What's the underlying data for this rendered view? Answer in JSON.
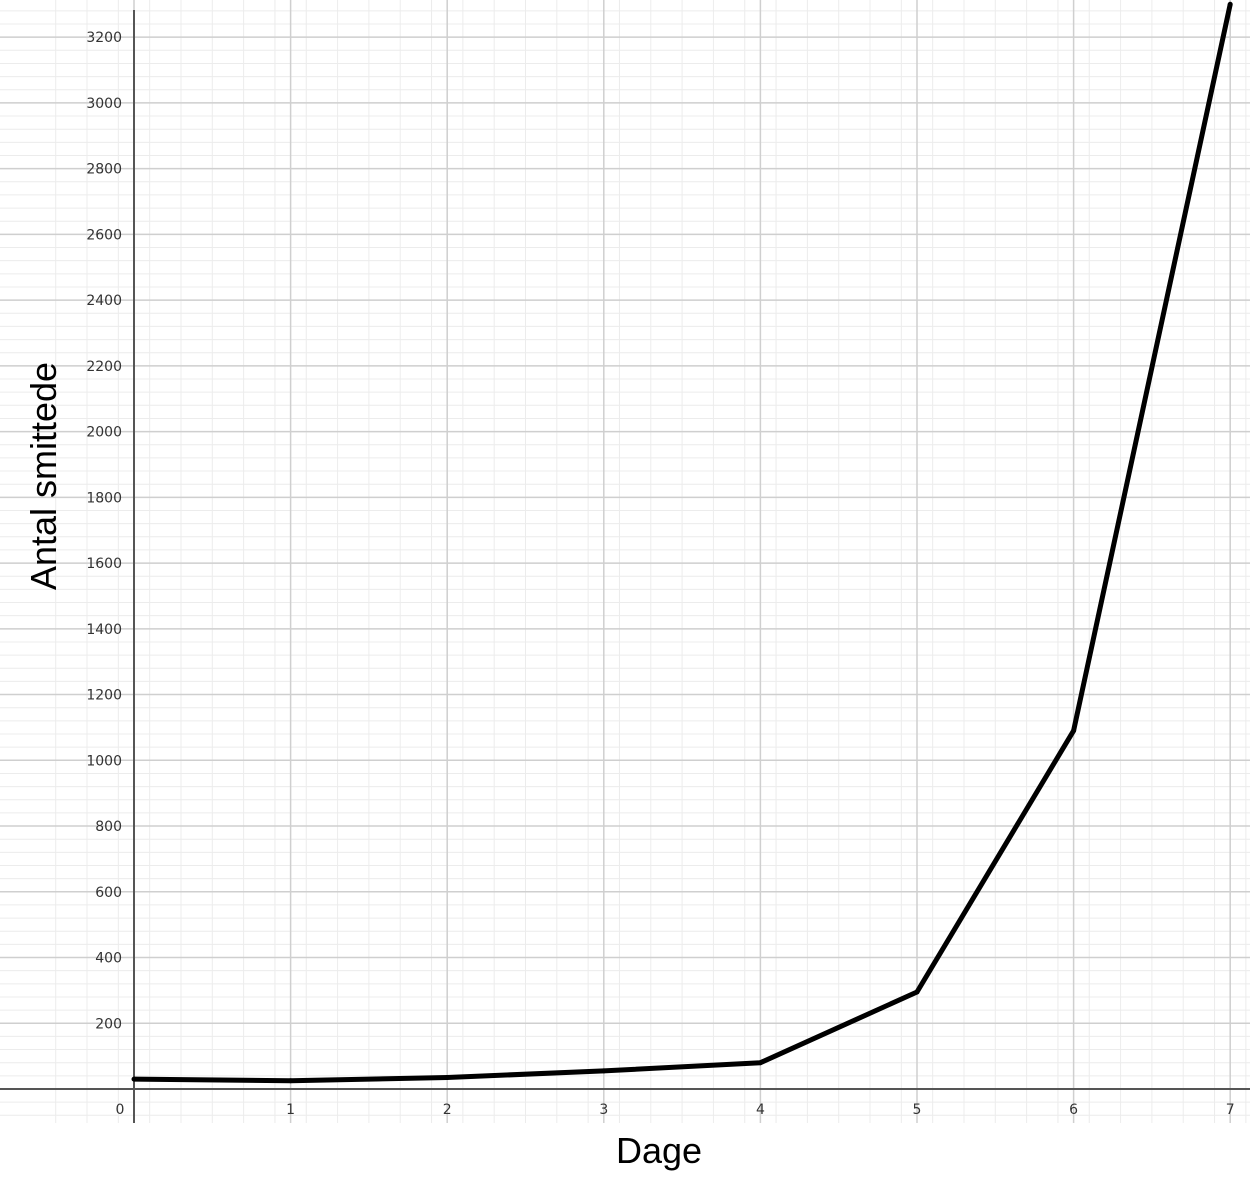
{
  "chart_data": {
    "type": "line",
    "title": "",
    "xlabel": "Dage",
    "ylabel": "Antal smittede",
    "xlim": [
      -0.5,
      7.1
    ],
    "ylim": [
      -100,
      3290
    ],
    "x_ticks": [
      0,
      1,
      2,
      3,
      4,
      5,
      6,
      7
    ],
    "x_tick_labels": [
      "0",
      "1",
      "2",
      "3",
      "4",
      "5",
      "6",
      "7"
    ],
    "y_ticks": [
      200,
      400,
      600,
      800,
      1000,
      1200,
      1400,
      1600,
      1800,
      2000,
      2200,
      2400,
      2600,
      2800,
      3000,
      3200
    ],
    "y_tick_labels": [
      "200",
      "400",
      "600",
      "800",
      "1000",
      "1200",
      "1400",
      "1600",
      "1800",
      "2000",
      "2200",
      "2400",
      "2600",
      "2800",
      "3000",
      "3200"
    ],
    "grid": true,
    "minor_grid": true,
    "legend": "none",
    "series": [
      {
        "x": [
          0,
          1,
          2,
          3,
          4,
          5,
          6,
          7
        ],
        "values": [
          30,
          25,
          35,
          55,
          80,
          295,
          1090,
          3300
        ],
        "color": "#000000"
      }
    ]
  }
}
